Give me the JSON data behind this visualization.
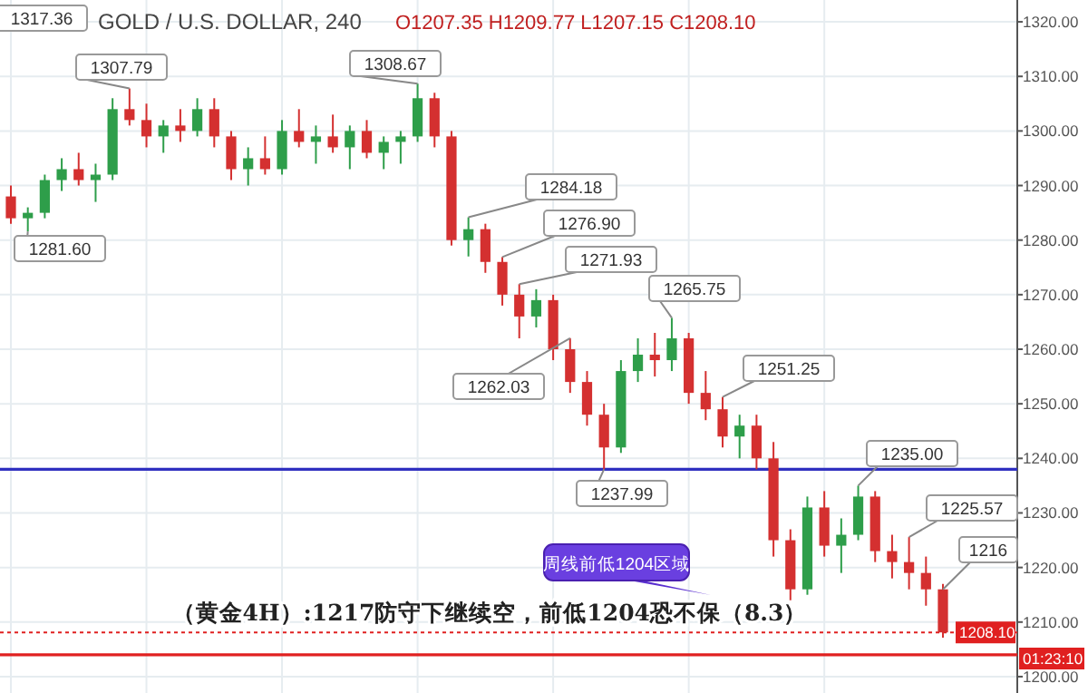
{
  "chart_data": {
    "type": "candlestick",
    "title": "GOLD / U.S. DOLLAR, 240",
    "subtitle": "O1207.35 H1209.77 L1207.15 C1208.10",
    "categories": [
      null,
      null,
      null,
      null,
      null,
      null,
      null,
      null,
      null,
      null,
      null,
      null,
      null,
      null,
      null,
      null,
      null,
      null,
      null,
      null,
      null,
      null,
      null,
      null,
      null,
      null,
      null,
      null,
      null,
      null,
      null,
      null,
      null,
      null,
      null,
      null,
      null,
      null,
      null,
      null,
      null,
      null,
      null,
      null,
      null,
      null,
      null,
      null,
      null,
      null,
      null,
      null,
      null,
      null,
      null,
      null
    ],
    "ohlc": [
      [
        1288,
        1290,
        1283,
        1284
      ],
      [
        1284,
        1286,
        1281.6,
        1285
      ],
      [
        1285,
        1292,
        1284,
        1291
      ],
      [
        1291,
        1295,
        1289,
        1293
      ],
      [
        1293,
        1296,
        1290,
        1291
      ],
      [
        1291,
        1294,
        1287,
        1292
      ],
      [
        1292,
        1306,
        1291,
        1304
      ],
      [
        1304,
        1307.79,
        1301,
        1302
      ],
      [
        1302,
        1305,
        1297,
        1299
      ],
      [
        1299,
        1302,
        1296,
        1301
      ],
      [
        1301,
        1304,
        1298,
        1300
      ],
      [
        1300,
        1306,
        1299,
        1304
      ],
      [
        1304,
        1306,
        1297,
        1299
      ],
      [
        1299,
        1300,
        1291,
        1293
      ],
      [
        1293,
        1297,
        1290,
        1295
      ],
      [
        1295,
        1299,
        1292,
        1293
      ],
      [
        1293,
        1302,
        1292,
        1300
      ],
      [
        1300,
        1304,
        1297,
        1298
      ],
      [
        1298,
        1301,
        1294,
        1299
      ],
      [
        1299,
        1303,
        1296,
        1297
      ],
      [
        1297,
        1301,
        1293,
        1300
      ],
      [
        1300,
        1302,
        1295,
        1296
      ],
      [
        1296,
        1299,
        1293,
        1298
      ],
      [
        1298,
        1300,
        1294,
        1299
      ],
      [
        1299,
        1308.67,
        1298,
        1306
      ],
      [
        1306,
        1307,
        1297,
        1299
      ],
      [
        1299,
        1300,
        1279,
        1280
      ],
      [
        1280,
        1284.18,
        1277,
        1282
      ],
      [
        1282,
        1283,
        1274,
        1276
      ],
      [
        1276,
        1276.9,
        1268,
        1270
      ],
      [
        1270,
        1271.93,
        1262,
        1266
      ],
      [
        1266,
        1271,
        1264,
        1269
      ],
      [
        1269,
        1270,
        1258,
        1260
      ],
      [
        1260,
        1262.03,
        1252,
        1254
      ],
      [
        1254,
        1256,
        1246,
        1248
      ],
      [
        1248,
        1250,
        1237.99,
        1242
      ],
      [
        1242,
        1258,
        1241,
        1256
      ],
      [
        1256,
        1262,
        1254,
        1259
      ],
      [
        1259,
        1263,
        1255,
        1258
      ],
      [
        1258,
        1265.75,
        1256,
        1262
      ],
      [
        1262,
        1263,
        1250,
        1252
      ],
      [
        1252,
        1256,
        1247,
        1249
      ],
      [
        1249,
        1251.25,
        1242,
        1244
      ],
      [
        1244,
        1248,
        1240,
        1246
      ],
      [
        1246,
        1248,
        1238,
        1240
      ],
      [
        1240,
        1243,
        1222,
        1225
      ],
      [
        1225,
        1227,
        1214,
        1216
      ],
      [
        1216,
        1233,
        1215,
        1231
      ],
      [
        1231,
        1234,
        1222,
        1224
      ],
      [
        1224,
        1229,
        1219,
        1226
      ],
      [
        1226,
        1235,
        1225,
        1233
      ],
      [
        1233,
        1234,
        1221,
        1223
      ],
      [
        1223,
        1226,
        1218,
        1221
      ],
      [
        1221,
        1225.57,
        1216,
        1219
      ],
      [
        1219,
        1222,
        1213,
        1216
      ],
      [
        1216,
        1217,
        1207.15,
        1208.1
      ]
    ],
    "ylim": [
      1197,
      1324
    ],
    "yticks": [
      {
        "value": 1200,
        "label": "1200.00"
      },
      {
        "value": 1210,
        "label": "1210.00"
      },
      {
        "value": 1220,
        "label": "1220.00"
      },
      {
        "value": 1230,
        "label": "1230.00"
      },
      {
        "value": 1240,
        "label": "1240.00"
      },
      {
        "value": 1250,
        "label": "1250.00"
      },
      {
        "value": 1260,
        "label": "1260.00"
      },
      {
        "value": 1270,
        "label": "1270.00"
      },
      {
        "value": 1280,
        "label": "1280.00"
      },
      {
        "value": 1290,
        "label": "1290.00"
      },
      {
        "value": 1300,
        "label": "1300.00"
      },
      {
        "value": 1310,
        "label": "1310.00"
      },
      {
        "value": 1320,
        "label": "1320.00"
      }
    ],
    "grid": true,
    "tick_labels": "y",
    "ref_lines": [
      {
        "axis": "y",
        "value": 1204,
        "color": "#e02020"
      },
      {
        "axis": "y",
        "value": 1208.1,
        "label": "1208.10",
        "color": "#e02020",
        "line_style": "dotted"
      },
      {
        "axis": "y",
        "value": 1237.99,
        "color": "#3030c0"
      }
    ],
    "annotations": [
      "1317.36",
      "1307.79",
      "1308.67",
      "1281.60",
      "1284.18",
      "1276.90",
      "1271.93",
      "1262.03",
      "1265.75",
      "1251.25",
      "1237.99",
      "1235.00",
      "1225.57",
      "1216",
      "周线前低1204区域",
      "（黄金4H）:1217防守下继续空，前低1204恐不保（8.3）",
      "01:23:10"
    ]
  }
}
